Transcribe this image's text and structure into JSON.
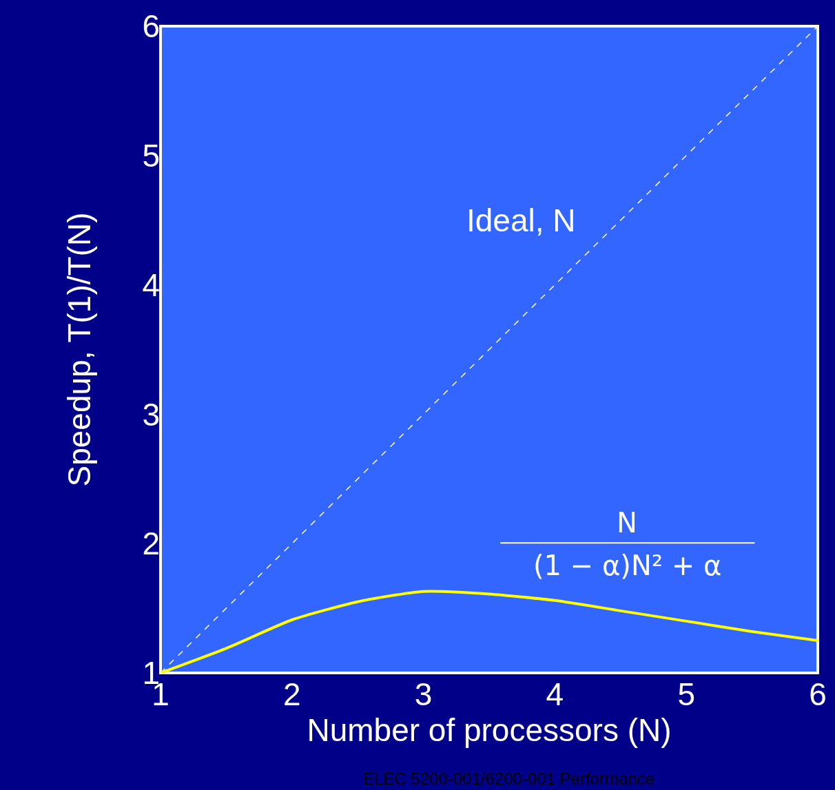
{
  "chart_data": {
    "type": "line",
    "xlabel": "Number of processors (N)",
    "ylabel": "Speedup, T(1)/T(N)",
    "series": [
      {
        "color": "#ffffff",
        "line_style": "dashed",
        "x": [
          1,
          6
        ],
        "values": [
          1,
          6
        ]
      },
      {
        "color": "#ffff00",
        "line_style": "solid",
        "x": [
          1,
          1.5,
          2,
          2.5,
          3,
          3.5,
          4,
          4.5,
          5,
          5.5,
          6
        ],
        "values": [
          1.0,
          1.19,
          1.41,
          1.55,
          1.63,
          1.61,
          1.56,
          1.48,
          1.4,
          1.32,
          1.25
        ]
      }
    ],
    "annotations": [
      "Ideal, N",
      "N",
      "(1 − α)N² + α",
      "ELEC 5200-001/6200-001 Performance"
    ],
    "xlim": [
      1,
      6
    ],
    "ylim": [
      1,
      6
    ],
    "xticks": [
      1,
      2,
      3,
      4,
      5,
      6
    ],
    "yticks": [
      1,
      2,
      3,
      4,
      5,
      6
    ],
    "grid": false,
    "legend": false,
    "marker": "none"
  }
}
